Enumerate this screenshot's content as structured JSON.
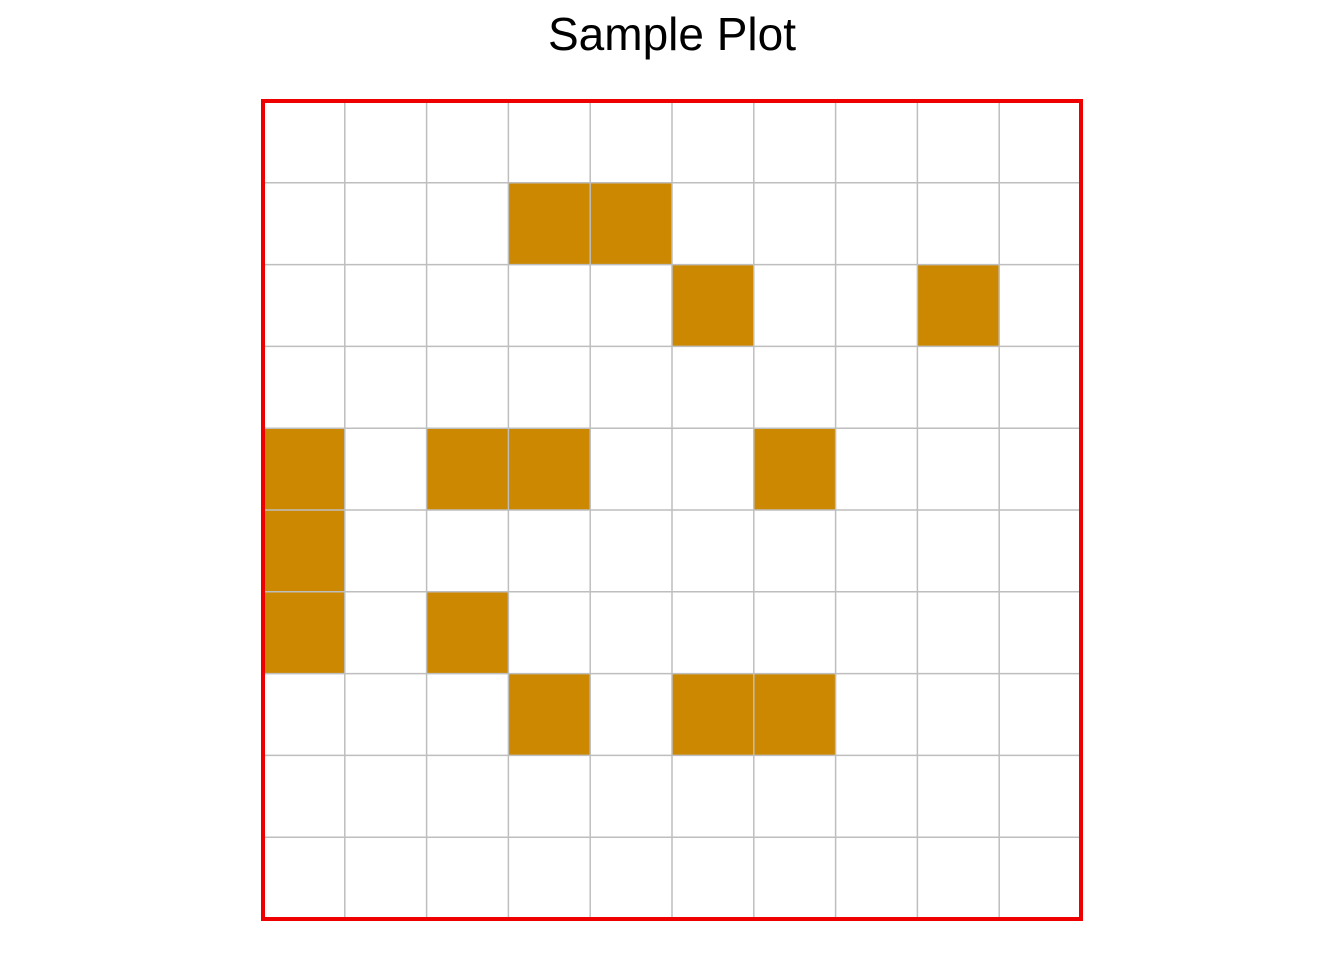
{
  "chart_data": {
    "type": "heatmap",
    "title": "Sample Plot",
    "xlabel": "",
    "ylabel": "",
    "grid": true,
    "n_cols": 10,
    "n_rows": 10,
    "filled_cells": [
      {
        "row": 1,
        "col": 3
      },
      {
        "row": 1,
        "col": 4
      },
      {
        "row": 2,
        "col": 5
      },
      {
        "row": 2,
        "col": 8
      },
      {
        "row": 4,
        "col": 0
      },
      {
        "row": 4,
        "col": 2
      },
      {
        "row": 4,
        "col": 3
      },
      {
        "row": 4,
        "col": 6
      },
      {
        "row": 5,
        "col": 0
      },
      {
        "row": 6,
        "col": 0
      },
      {
        "row": 6,
        "col": 2
      },
      {
        "row": 7,
        "col": 3
      },
      {
        "row": 7,
        "col": 5
      },
      {
        "row": 7,
        "col": 6
      }
    ],
    "colors": {
      "fill": "#CC8800",
      "empty": "#FFFFFF",
      "grid": "#BEBEBE",
      "border": "#EE0000"
    }
  }
}
